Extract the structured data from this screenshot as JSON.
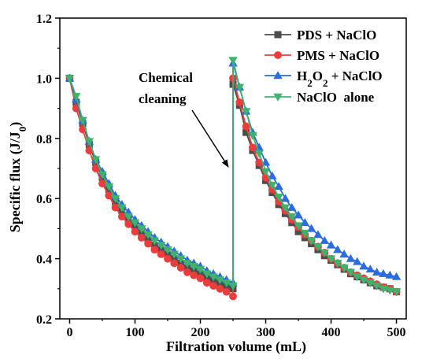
{
  "chart_data": {
    "type": "line",
    "xlabel": "Filtration volume (mL)",
    "ylabel": "Specific flux (J/J",
    "ylabel_sub": "0",
    "ylabel_close": ")",
    "xlim": [
      -15,
      515
    ],
    "ylim": [
      0.2,
      1.2
    ],
    "x_ticks": [
      0,
      100,
      200,
      300,
      400,
      500
    ],
    "y_ticks": [
      0.2,
      0.4,
      0.6,
      0.8,
      1.0,
      1.2
    ],
    "x_tick_labels": [
      "0",
      "100",
      "200",
      "300",
      "400",
      "500"
    ],
    "y_tick_labels": [
      "0.2",
      "0.4",
      "0.6",
      "0.8",
      "1.0",
      "1.2"
    ],
    "grid": false,
    "legend_position": "top-right",
    "annotation": {
      "line1": "Chemical",
      "line2": "cleaning"
    },
    "legend": [
      {
        "text": "PDS + NaClO"
      },
      {
        "text": "PMS + NaClO"
      },
      {
        "pre": "H",
        "sub1": "2",
        "mid": "O",
        "sub2": "2",
        "post": " + NaClO"
      },
      {
        "text": "NaClO  alone"
      }
    ],
    "series": [
      {
        "key": "pds",
        "color": "#4d4d4d",
        "marker": "square",
        "x": [
          0,
          10,
          20,
          30,
          40,
          50,
          60,
          70,
          80,
          90,
          100,
          110,
          120,
          130,
          140,
          150,
          160,
          170,
          180,
          190,
          200,
          210,
          220,
          230,
          240,
          250,
          250,
          260,
          270,
          280,
          290,
          300,
          310,
          320,
          330,
          340,
          350,
          360,
          370,
          380,
          390,
          400,
          410,
          420,
          430,
          440,
          450,
          460,
          470,
          480,
          490,
          500
        ],
        "y": [
          1.0,
          0.92,
          0.85,
          0.78,
          0.72,
          0.67,
          0.63,
          0.59,
          0.56,
          0.53,
          0.51,
          0.485,
          0.465,
          0.445,
          0.43,
          0.415,
          0.4,
          0.385,
          0.37,
          0.36,
          0.35,
          0.34,
          0.33,
          0.32,
          0.31,
          0.3,
          0.98,
          0.91,
          0.82,
          0.76,
          0.71,
          0.66,
          0.62,
          0.58,
          0.55,
          0.52,
          0.49,
          0.47,
          0.45,
          0.43,
          0.41,
          0.395,
          0.38,
          0.365,
          0.35,
          0.34,
          0.33,
          0.32,
          0.31,
          0.305,
          0.3,
          0.29
        ]
      },
      {
        "key": "pms",
        "color": "#ee3b3b",
        "marker": "circle",
        "x": [
          0,
          10,
          20,
          30,
          40,
          50,
          60,
          70,
          80,
          90,
          100,
          110,
          120,
          130,
          140,
          150,
          160,
          170,
          180,
          190,
          200,
          210,
          220,
          230,
          240,
          250,
          250,
          260,
          270,
          280,
          290,
          300,
          310,
          320,
          330,
          340,
          350,
          360,
          370,
          380,
          390,
          400,
          410,
          420,
          430,
          440,
          450,
          460,
          470,
          480,
          490,
          500
        ],
        "y": [
          1.0,
          0.9,
          0.83,
          0.76,
          0.7,
          0.65,
          0.61,
          0.57,
          0.54,
          0.515,
          0.49,
          0.47,
          0.45,
          0.43,
          0.415,
          0.4,
          0.385,
          0.37,
          0.355,
          0.345,
          0.335,
          0.32,
          0.31,
          0.3,
          0.29,
          0.275,
          1.0,
          0.92,
          0.84,
          0.77,
          0.72,
          0.67,
          0.63,
          0.59,
          0.56,
          0.53,
          0.505,
          0.48,
          0.46,
          0.44,
          0.42,
          0.4,
          0.385,
          0.37,
          0.355,
          0.345,
          0.335,
          0.325,
          0.315,
          0.305,
          0.3,
          0.29
        ]
      },
      {
        "key": "h2o2",
        "color": "#2d6be0",
        "marker": "triangle-up",
        "x": [
          0,
          10,
          20,
          30,
          40,
          50,
          60,
          70,
          80,
          90,
          100,
          110,
          120,
          130,
          140,
          150,
          160,
          170,
          180,
          190,
          200,
          210,
          220,
          230,
          240,
          250,
          250,
          260,
          270,
          280,
          290,
          300,
          310,
          320,
          330,
          340,
          350,
          360,
          370,
          380,
          390,
          400,
          410,
          420,
          430,
          440,
          450,
          460,
          470,
          480,
          490,
          500
        ],
        "y": [
          1.0,
          0.93,
          0.86,
          0.79,
          0.73,
          0.69,
          0.65,
          0.61,
          0.58,
          0.555,
          0.53,
          0.51,
          0.49,
          0.47,
          0.455,
          0.44,
          0.425,
          0.41,
          0.395,
          0.385,
          0.375,
          0.36,
          0.35,
          0.34,
          0.33,
          0.32,
          1.05,
          0.97,
          0.89,
          0.82,
          0.77,
          0.72,
          0.675,
          0.64,
          0.6,
          0.57,
          0.545,
          0.52,
          0.5,
          0.48,
          0.46,
          0.445,
          0.43,
          0.415,
          0.4,
          0.39,
          0.375,
          0.365,
          0.355,
          0.35,
          0.345,
          0.34
        ]
      },
      {
        "key": "naclo",
        "color": "#3db36b",
        "marker": "triangle-down",
        "x": [
          0,
          10,
          20,
          30,
          40,
          50,
          60,
          70,
          80,
          90,
          100,
          110,
          120,
          130,
          140,
          150,
          160,
          170,
          180,
          190,
          200,
          210,
          220,
          230,
          240,
          250,
          250,
          260,
          270,
          280,
          290,
          300,
          310,
          320,
          330,
          340,
          350,
          360,
          370,
          380,
          390,
          400,
          410,
          420,
          430,
          440,
          450,
          460,
          470,
          480,
          490,
          500
        ],
        "y": [
          1.0,
          0.94,
          0.86,
          0.79,
          0.73,
          0.68,
          0.64,
          0.6,
          0.57,
          0.54,
          0.52,
          0.5,
          0.48,
          0.46,
          0.445,
          0.43,
          0.415,
          0.4,
          0.385,
          0.375,
          0.365,
          0.35,
          0.34,
          0.33,
          0.32,
          0.31,
          1.06,
          0.97,
          0.89,
          0.81,
          0.75,
          0.69,
          0.645,
          0.605,
          0.57,
          0.54,
          0.51,
          0.485,
          0.46,
          0.44,
          0.42,
          0.4,
          0.385,
          0.37,
          0.355,
          0.34,
          0.33,
          0.32,
          0.31,
          0.3,
          0.295,
          0.29
        ]
      }
    ]
  }
}
